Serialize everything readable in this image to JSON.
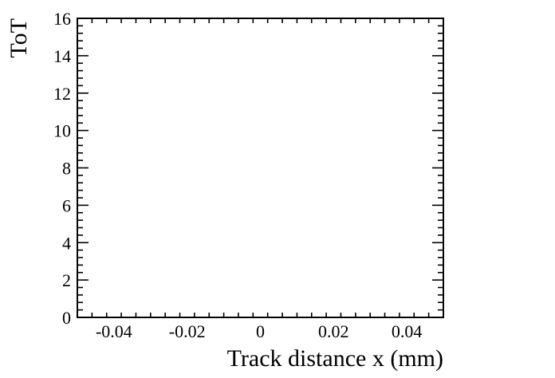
{
  "chart_data": {
    "type": "scatter",
    "title": "",
    "xlabel": "Track distance x (mm)",
    "ylabel": "ToT",
    "xlim": [
      -0.05,
      0.05
    ],
    "ylim": [
      0,
      16
    ],
    "x_ticks": [
      -0.04,
      -0.02,
      0,
      0.02,
      0.04
    ],
    "x_tick_labels": [
      "-0.04",
      "-0.02",
      "0",
      "0.02",
      "0.04"
    ],
    "y_ticks": [
      0,
      2,
      4,
      6,
      8,
      10,
      12,
      14,
      16
    ],
    "y_tick_labels": [
      "0",
      "2",
      "4",
      "6",
      "8",
      "10",
      "12",
      "14",
      "16"
    ],
    "grid": false,
    "series": []
  }
}
